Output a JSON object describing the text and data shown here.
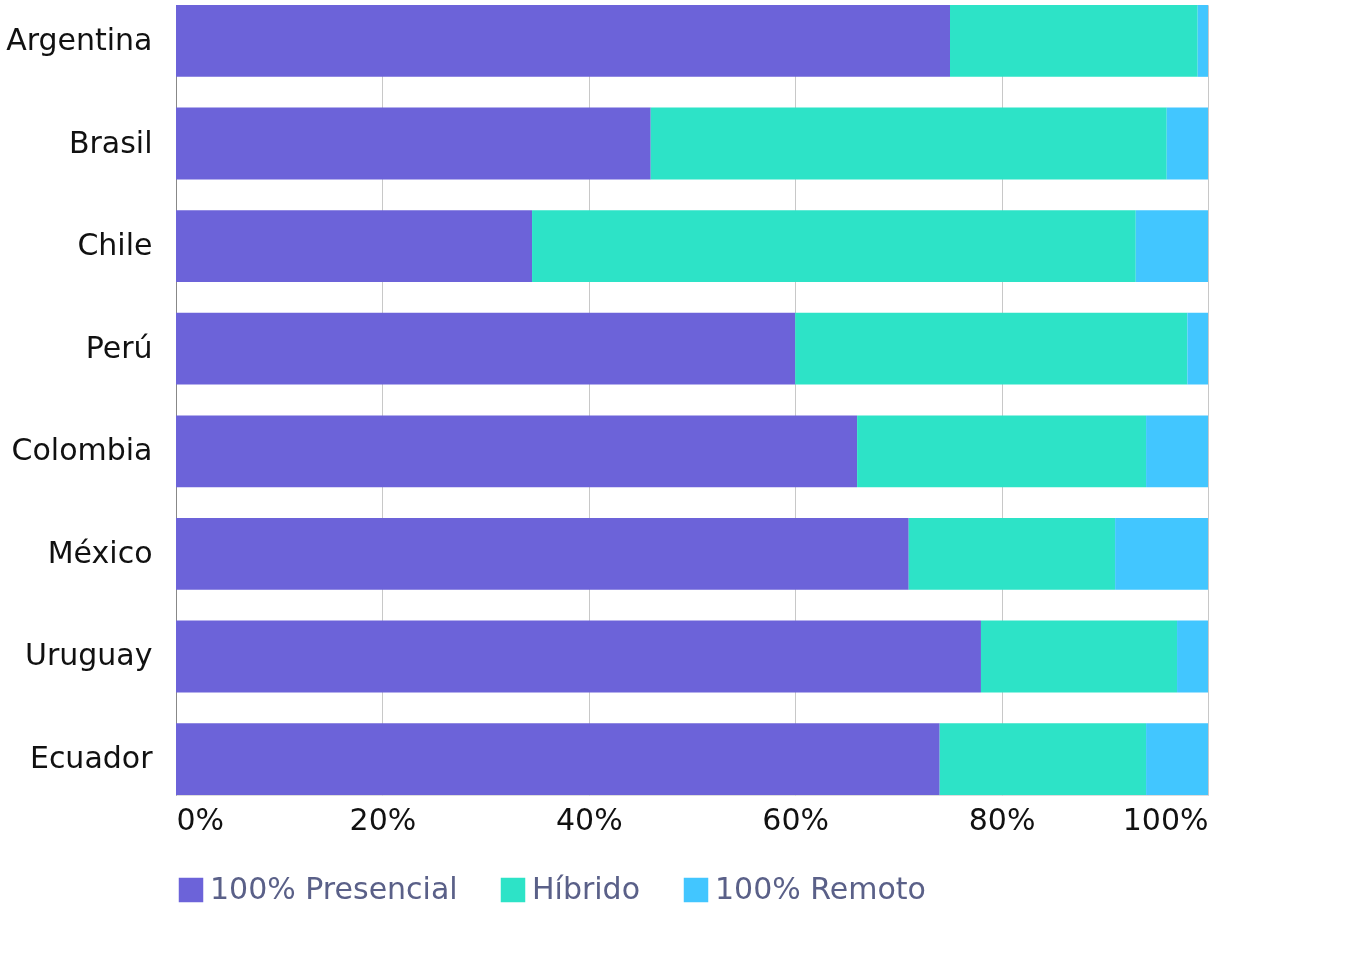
{
  "chart_data": {
    "type": "bar",
    "orientation": "horizontal",
    "stacked": true,
    "categories": [
      "Argentina",
      "Brasil",
      "Chile",
      "Perú",
      "Colombia",
      "México",
      "Uruguay",
      "Ecuador"
    ],
    "series": [
      {
        "name": "100% Presencial",
        "color": "#6c63d9",
        "values": [
          75,
          46,
          34.5,
          60,
          66,
          71,
          78,
          74
        ]
      },
      {
        "name": "Híbrido",
        "color": "#2de3c7",
        "values": [
          24,
          50,
          58.5,
          38,
          28,
          20,
          19,
          20
        ]
      },
      {
        "name": "100% Remoto",
        "color": "#42c6ff",
        "values": [
          1,
          4,
          7,
          2,
          6,
          9,
          3,
          6
        ]
      }
    ],
    "xlim": [
      0,
      100
    ],
    "xticks": [
      {
        "value": 0,
        "label": "0%"
      },
      {
        "value": 20,
        "label": "20%"
      },
      {
        "value": 40,
        "label": "40%"
      },
      {
        "value": 60,
        "label": "60%"
      },
      {
        "value": 80,
        "label": "80%"
      },
      {
        "value": 100,
        "label": "100%"
      }
    ],
    "grid": "x",
    "legend": "bottom"
  }
}
